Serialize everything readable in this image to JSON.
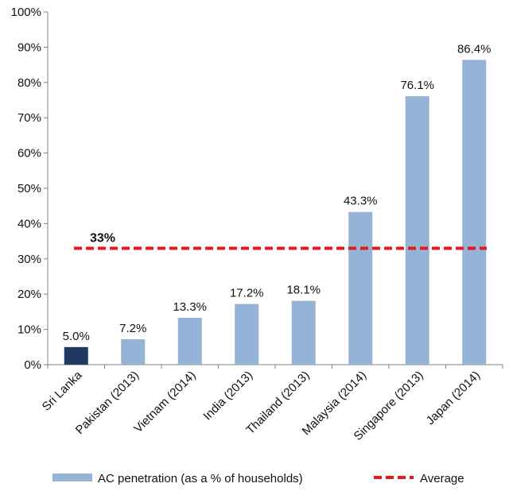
{
  "chart_data": {
    "type": "bar",
    "categories": [
      "Sri Lanka",
      "Pakistan (2013)",
      "Vietnam (2014)",
      "India (2013)",
      "Thailand (2013)",
      "Malaysia (2014)",
      "Singapore (2013)",
      "Japan (2014)"
    ],
    "series": [
      {
        "name": "AC penetration (as a % of households)",
        "values": [
          5.0,
          7.2,
          13.3,
          17.2,
          18.1,
          43.3,
          76.1,
          86.4
        ],
        "data_labels": [
          "5.0%",
          "7.2%",
          "13.3%",
          "17.2%",
          "18.1%",
          "43.3%",
          "76.1%",
          "86.4%"
        ]
      }
    ],
    "highlight_index": 0,
    "average": {
      "name": "Average",
      "value": 33,
      "label": "33%"
    },
    "ylim": [
      0,
      100
    ],
    "yticks": [
      0,
      10,
      20,
      30,
      40,
      50,
      60,
      70,
      80,
      90,
      100
    ],
    "ytick_labels": [
      "0%",
      "10%",
      "20%",
      "30%",
      "40%",
      "50%",
      "60%",
      "70%",
      "80%",
      "90%",
      "100%"
    ],
    "grid": false,
    "legend_position": "bottom",
    "title": "",
    "xlabel": "",
    "ylabel": ""
  },
  "colors": {
    "bar": "#95b3d7",
    "highlight_bar": "#1f3a5f",
    "average_line": "#e41a1c",
    "axis": "#808080"
  }
}
